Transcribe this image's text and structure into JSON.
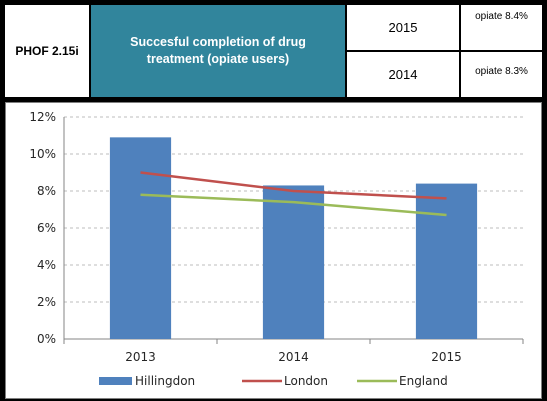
{
  "header": {
    "code": "PHOF 2.15i",
    "title": "Succesful completion of drug treatment (opiate users)",
    "rows": [
      {
        "year": "2015",
        "value": "opiate 8.4%"
      },
      {
        "year": "2014",
        "value": "opiate 8.3%"
      }
    ]
  },
  "colors": {
    "header_accent": "#31859c",
    "hillingdon": "#4f81bd",
    "london": "#c0504d",
    "england": "#9bbb59"
  },
  "chart_data": {
    "type": "bar",
    "categories": [
      "2013",
      "2014",
      "2015"
    ],
    "series": [
      {
        "name": "Hillingdon",
        "type": "bar",
        "values": [
          10.9,
          8.3,
          8.4
        ]
      },
      {
        "name": "London",
        "type": "line",
        "values": [
          9.0,
          8.0,
          7.6
        ]
      },
      {
        "name": "England",
        "type": "line",
        "values": [
          7.8,
          7.4,
          6.7
        ]
      }
    ],
    "ylim": [
      0,
      12
    ],
    "yticks": [
      "0%",
      "2%",
      "4%",
      "6%",
      "8%",
      "10%",
      "12%"
    ],
    "grid": true,
    "legend": "bottom"
  }
}
